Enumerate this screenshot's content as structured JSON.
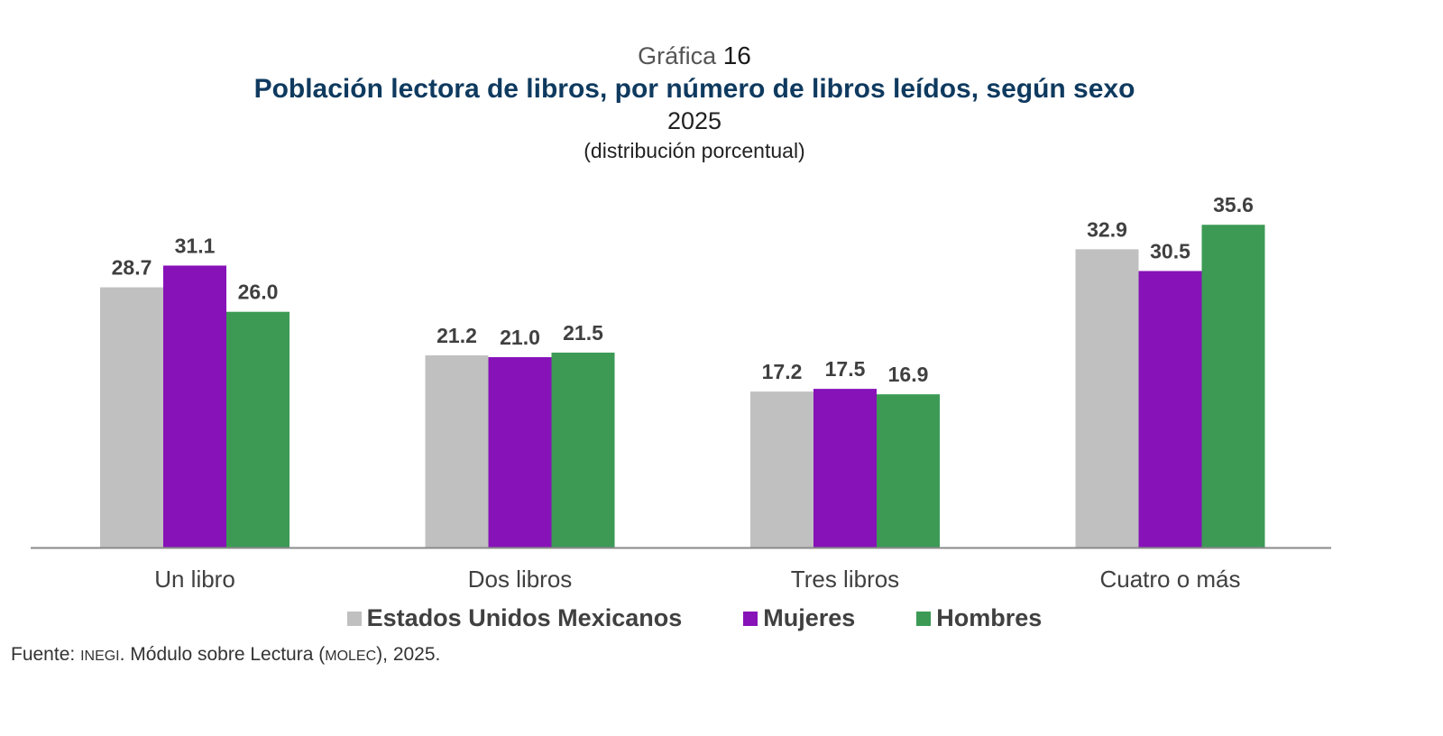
{
  "header": {
    "label_word": "Gráfica",
    "label_number": "16",
    "title": "Población lectora de libros, por número de libros leídos, según sexo",
    "year": "2025",
    "unit": "(distribución porcentual)"
  },
  "chart_data": {
    "type": "bar",
    "categories": [
      "Un libro",
      "Dos libros",
      "Tres libros",
      "Cuatro o más"
    ],
    "series": [
      {
        "name": "Estados Unidos Mexicanos",
        "values": [
          28.7,
          21.2,
          17.2,
          32.9
        ],
        "color": "#c0c0c0"
      },
      {
        "name": "Mujeres",
        "values": [
          31.1,
          21.0,
          17.5,
          30.5
        ],
        "color": "#8612b8"
      },
      {
        "name": "Hombres",
        "values": [
          26.0,
          21.5,
          16.9,
          35.6
        ],
        "color": "#3c9a55"
      }
    ],
    "ylim": [
      0,
      40
    ],
    "grid": false,
    "legend_position": "bottom"
  },
  "source": {
    "prefix": "Fuente: ",
    "org": "INEGI",
    "mid": ". Módulo sobre Lectura (",
    "abbr": "MOLEC",
    "suffix": "), 2025."
  }
}
